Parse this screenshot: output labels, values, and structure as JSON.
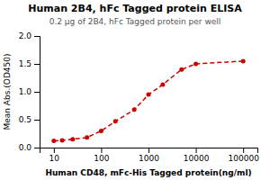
{
  "chart_data": {
    "type": "line",
    "title": "Human 2B4, hFc Tagged protein ELISA",
    "subtitle": "0.2 μg of 2B4, hFc Tagged protein per well",
    "xlabel": "Human CD48, mFc-His Tagged protein(ng/ml)",
    "ylabel": "Mean Abs.(OD450)",
    "x": [
      10,
      15,
      25,
      50,
      100,
      200,
      500,
      1000,
      2000,
      5000,
      10000,
      100000
    ],
    "values": [
      0.12,
      0.13,
      0.15,
      0.18,
      0.3,
      0.47,
      0.68,
      0.95,
      1.13,
      1.4,
      1.5,
      1.55
    ],
    "color": "#CC0000",
    "line_style": "dashed",
    "marker": "circle",
    "log": "x",
    "grid": false,
    "xlim": [
      5,
      200000
    ],
    "ylim": [
      0.0,
      2.0
    ],
    "xticks": [
      10,
      100,
      1000,
      10000,
      100000
    ],
    "yticks": [
      {
        "value": 0.0,
        "label": "0.0"
      },
      0.5,
      {
        "value": 1.0,
        "label": "1.0"
      },
      1.5,
      {
        "value": 2.0,
        "label": "2.0"
      }
    ]
  }
}
